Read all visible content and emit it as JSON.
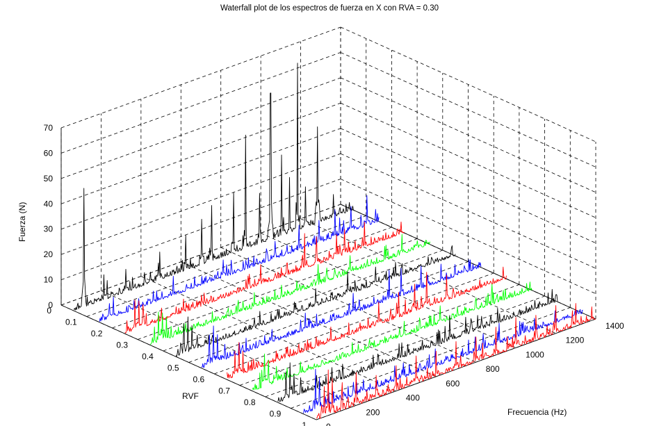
{
  "chart_data": {
    "type": "line",
    "title": "Waterfall plot de los espectros de fuerza en X con RVA = 0.30",
    "xlabel": "Frecuencia (Hz)",
    "ylabel": "RVF",
    "zlabel": "Fuerza (N)",
    "xlim": [
      0,
      1400
    ],
    "ylim": [
      0,
      1
    ],
    "zlim": [
      0,
      70
    ],
    "x_ticks": [
      "0",
      "200",
      "400",
      "600",
      "800",
      "1000",
      "1200",
      "1400"
    ],
    "y_ticks": [
      "0",
      "0.1",
      "0.2",
      "0.3",
      "0.4",
      "0.5",
      "0.6",
      "0.7",
      "0.8",
      "0.9",
      "1"
    ],
    "z_ticks": [
      "0",
      "10",
      "20",
      "30",
      "40",
      "50",
      "60",
      "70"
    ],
    "grid": true,
    "series": [
      {
        "rvf": 0.05,
        "color": "#000000",
        "peaks": [
          [
            50,
            47
          ],
          [
            150,
            10
          ],
          [
            260,
            9
          ],
          [
            430,
            11
          ],
          [
            560,
            14
          ],
          [
            640,
            18
          ],
          [
            690,
            22
          ],
          [
            800,
            24
          ],
          [
            860,
            45
          ],
          [
            930,
            20
          ],
          [
            985,
            58
          ],
          [
            1040,
            32
          ],
          [
            1080,
            22
          ],
          [
            1120,
            66
          ],
          [
            1160,
            16
          ],
          [
            1220,
            38
          ],
          [
            1300,
            9
          ]
        ]
      },
      {
        "rvf": 0.15,
        "color": "#0000ff",
        "peaks": [
          [
            50,
            6
          ],
          [
            70,
            8
          ],
          [
            620,
            7
          ],
          [
            880,
            7
          ],
          [
            1000,
            10
          ],
          [
            1100,
            9
          ],
          [
            1180,
            11
          ],
          [
            1260,
            10
          ],
          [
            1340,
            12
          ]
        ]
      },
      {
        "rvf": 0.25,
        "color": "#ff0000",
        "peaks": [
          [
            50,
            12
          ],
          [
            70,
            11
          ],
          [
            90,
            9
          ],
          [
            680,
            8
          ],
          [
            900,
            14
          ],
          [
            960,
            11
          ],
          [
            1060,
            9
          ],
          [
            1100,
            10
          ],
          [
            1200,
            10
          ]
        ]
      },
      {
        "rvf": 0.35,
        "color": "#00ff00",
        "peaks": [
          [
            40,
            12
          ],
          [
            60,
            11
          ],
          [
            80,
            9
          ],
          [
            520,
            6
          ],
          [
            840,
            8
          ],
          [
            1000,
            7
          ],
          [
            1180,
            6
          ],
          [
            1260,
            8
          ]
        ]
      },
      {
        "rvf": 0.45,
        "color": "#000000",
        "peaks": [
          [
            40,
            12
          ],
          [
            60,
            14
          ],
          [
            80,
            10
          ],
          [
            420,
            6
          ],
          [
            700,
            7
          ],
          [
            860,
            9
          ],
          [
            1000,
            7
          ],
          [
            1100,
            6
          ]
        ]
      },
      {
        "rvf": 0.55,
        "color": "#0000ff",
        "peaks": [
          [
            40,
            12
          ],
          [
            60,
            15
          ],
          [
            80,
            11
          ],
          [
            520,
            7
          ],
          [
            760,
            8
          ],
          [
            940,
            12
          ],
          [
            1000,
            11
          ],
          [
            1100,
            9
          ],
          [
            1200,
            7
          ]
        ]
      },
      {
        "rvf": 0.65,
        "color": "#ff0000",
        "peaks": [
          [
            40,
            10
          ],
          [
            60,
            13
          ],
          [
            80,
            9
          ],
          [
            520,
            6
          ],
          [
            760,
            9
          ],
          [
            860,
            10
          ],
          [
            940,
            11
          ],
          [
            1000,
            14
          ],
          [
            1100,
            10
          ]
        ]
      },
      {
        "rvf": 0.75,
        "color": "#00ff00",
        "peaks": [
          [
            60,
            13
          ],
          [
            80,
            10
          ],
          [
            500,
            5
          ],
          [
            760,
            6
          ],
          [
            940,
            7
          ],
          [
            1120,
            5
          ]
        ]
      },
      {
        "rvf": 0.85,
        "color": "#000000",
        "peaks": [
          [
            40,
            11
          ],
          [
            60,
            14
          ],
          [
            80,
            9
          ],
          [
            500,
            5
          ],
          [
            620,
            6
          ],
          [
            860,
            10
          ],
          [
            940,
            7
          ],
          [
            1000,
            6
          ],
          [
            1100,
            6
          ]
        ]
      },
      {
        "rvf": 0.95,
        "color": "#0000ff",
        "peaks": [
          [
            60,
            16
          ],
          [
            80,
            12
          ],
          [
            300,
            5
          ],
          [
            500,
            6
          ],
          [
            660,
            7
          ],
          [
            860,
            6
          ],
          [
            980,
            8
          ],
          [
            1100,
            5
          ]
        ]
      },
      {
        "rvf": 1.0,
        "color": "#ff0000",
        "peaks": [
          [
            40,
            12
          ],
          [
            60,
            18
          ],
          [
            80,
            14
          ],
          [
            130,
            11
          ],
          [
            200,
            13
          ],
          [
            300,
            9
          ],
          [
            400,
            10
          ],
          [
            500,
            11
          ],
          [
            600,
            10
          ],
          [
            700,
            11
          ],
          [
            800,
            10
          ],
          [
            900,
            11
          ],
          [
            1000,
            12
          ],
          [
            1100,
            10
          ],
          [
            1200,
            11
          ],
          [
            1300,
            9
          ]
        ]
      }
    ]
  }
}
